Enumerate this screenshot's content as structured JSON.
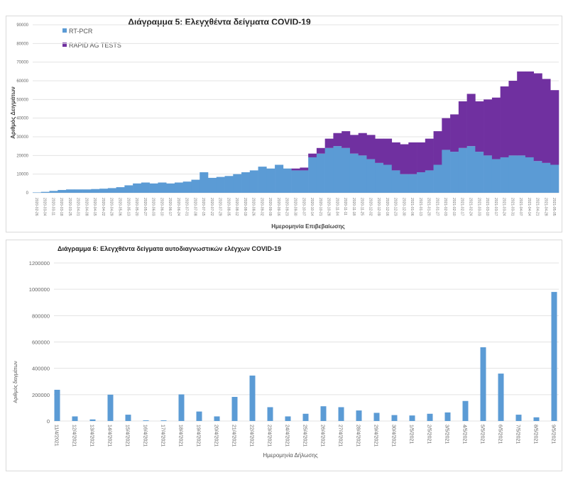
{
  "chart_data": [
    {
      "type": "bar",
      "stacked": true,
      "title": "Διάγραμμα 5: Ελεγχθέντα δείγματα COVID-19",
      "xlabel": "Ημερομηνία Επιβεβαίωσης",
      "ylabel": "Αριθμός Δειγμάτων",
      "ylim": [
        0,
        90000
      ],
      "yticks": [
        0,
        10000,
        20000,
        30000,
        40000,
        50000,
        60000,
        70000,
        80000,
        90000
      ],
      "grid": true,
      "legend": "top-left",
      "categories": [
        "2020-02-26",
        "2020-03-04",
        "2020-03-11",
        "2020-03-18",
        "2020-03-25",
        "2020-04-01",
        "2020-04-08",
        "2020-04-15",
        "2020-04-22",
        "2020-04-29",
        "2020-05-06",
        "2020-05-13",
        "2020-05-20",
        "2020-05-27",
        "2020-06-03",
        "2020-06-10",
        "2020-06-17",
        "2020-06-24",
        "2020-07-01",
        "2020-07-08",
        "2020-07-15",
        "2020-07-22",
        "2020-07-29",
        "2020-08-05",
        "2020-08-12",
        "2020-08-19",
        "2020-08-26",
        "2020-09-02",
        "2020-09-09",
        "2020-09-16",
        "2020-09-23",
        "2020-09-30",
        "2020-10-07",
        "2020-10-14",
        "2020-10-21",
        "2020-10-28",
        "2020-11-04",
        "2020-11-11",
        "2020-11-18",
        "2020-11-25",
        "2020-12-02",
        "2020-12-09",
        "2020-12-16",
        "2020-12-23",
        "2020-12-30",
        "2021-01-06",
        "2021-01-13",
        "2021-01-20",
        "2021-01-27",
        "2021-02-03",
        "2021-02-10",
        "2021-02-17",
        "2021-02-24",
        "2021-03-03",
        "2021-03-10",
        "2021-03-17",
        "2021-03-24",
        "2021-03-31",
        "2021-04-07",
        "2021-04-14",
        "2021-04-21",
        "2021-04-28",
        "2021-05-05"
      ],
      "series": [
        {
          "name": "RT-PCR",
          "color": "#5b9bd5",
          "values": [
            200,
            500,
            1000,
            1500,
            1800,
            1800,
            1800,
            2000,
            2200,
            2500,
            3000,
            4000,
            5000,
            5500,
            5000,
            5500,
            5000,
            5500,
            6000,
            7000,
            11000,
            8000,
            8500,
            9000,
            10000,
            11000,
            12000,
            14000,
            13000,
            15000,
            13000,
            12000,
            12000,
            19000,
            21000,
            24000,
            25000,
            24000,
            21000,
            20000,
            18000,
            16000,
            15000,
            12000,
            10000,
            10000,
            11000,
            12000,
            15000,
            23000,
            22000,
            24000,
            25000,
            22000,
            20000,
            18000,
            19000,
            20000,
            20000,
            19000,
            17000,
            16000,
            15000
          ]
        },
        {
          "name": "RAPID AG TESTS",
          "color": "#7030a0",
          "values": [
            0,
            0,
            0,
            0,
            0,
            0,
            0,
            0,
            0,
            0,
            0,
            0,
            0,
            0,
            0,
            0,
            0,
            0,
            0,
            0,
            0,
            0,
            0,
            0,
            0,
            0,
            0,
            0,
            0,
            0,
            0,
            1000,
            1500,
            2000,
            3000,
            5000,
            7000,
            9000,
            10000,
            12000,
            13000,
            13000,
            14000,
            15000,
            16000,
            17000,
            16000,
            17000,
            18000,
            17000,
            20000,
            25000,
            28000,
            27000,
            30000,
            33000,
            38000,
            40000,
            45000,
            46000,
            47000,
            45000,
            40000
          ]
        }
      ]
    },
    {
      "type": "bar",
      "title": "Διάγραμμα 6: Ελεγχθέντα δείγματα αυτοδιαγνωστικών ελέγχων COVID-19",
      "xlabel": "Ημερομηνία Δήλωσης",
      "ylabel": "Αριθμός δειγμάτων",
      "ylim": [
        0,
        1200000
      ],
      "yticks": [
        0,
        200000,
        400000,
        600000,
        800000,
        1000000,
        1200000
      ],
      "grid": true,
      "color": "#5b9bd5",
      "categories": [
        "11/4/2021",
        "12/4/2021",
        "13/4/2021",
        "14/4/2021",
        "15/4/2021",
        "16/4/2021",
        "17/4/2021",
        "18/4/2021",
        "19/4/2021",
        "20/4/2021",
        "21/4/2021",
        "22/4/2021",
        "23/4/2021",
        "24/4/2021",
        "25/4/2021",
        "26/4/2021",
        "27/4/2021",
        "28/4/2021",
        "29/4/2021",
        "30/4/2021",
        "1/5/2021",
        "2/5/2021",
        "3/5/2021",
        "4/5/2021",
        "5/5/2021",
        "6/5/2021",
        "7/5/2021",
        "8/5/2021",
        "9/5/2021"
      ],
      "values": [
        237000,
        35000,
        12000,
        200000,
        48000,
        5000,
        5000,
        202000,
        72000,
        35000,
        183000,
        345000,
        105000,
        35000,
        55000,
        112000,
        105000,
        80000,
        62000,
        45000,
        42000,
        55000,
        65000,
        152000,
        560000,
        360000,
        48000,
        28000,
        980000
      ]
    }
  ]
}
